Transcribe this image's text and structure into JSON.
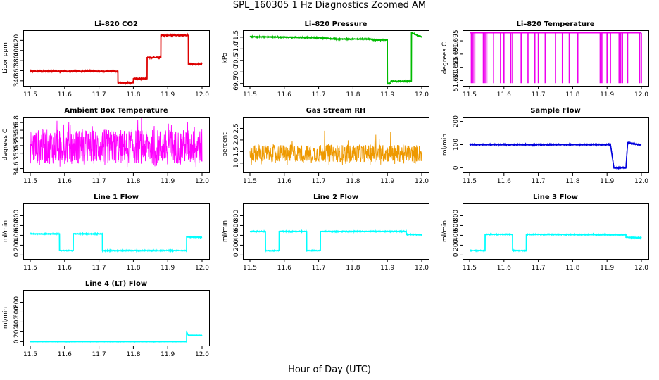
{
  "figure": {
    "title": "SPL_160305  1 Hz Diagnostics Zoomed AM",
    "xlabel": "Hour of Day (UTC)"
  },
  "chart_data": [
    {
      "type": "line",
      "title": "Li–820 CO2",
      "xlabel": "",
      "ylabel": "Licor ppm",
      "color": "#dd0000",
      "xlim": [
        11.5,
        12.0
      ],
      "ylim": [
        330,
        440
      ],
      "xticks": [
        "11.5",
        "11.6",
        "11.7",
        "11.8",
        "11.9",
        "12.0"
      ],
      "yticks": [
        {
          "v": 340,
          "label": "340"
        },
        {
          "v": 360,
          "label": "360"
        },
        {
          "v": 380,
          "label": "380"
        },
        {
          "v": 400,
          "label": "400"
        },
        {
          "v": 420,
          "label": "420"
        }
      ],
      "series": [
        {
          "x": [
            11.5,
            11.755,
            11.755,
            11.8,
            11.8,
            11.84,
            11.84,
            11.88,
            11.88,
            11.96,
            11.96,
            12.0
          ],
          "y": [
            359,
            359,
            336,
            336,
            344,
            344,
            386,
            386,
            430,
            430,
            373,
            373
          ],
          "noise": 1.5
        }
      ]
    },
    {
      "type": "line",
      "title": "Li–820 Pressure",
      "xlabel": "",
      "ylabel": "kPa",
      "color": "#00bb00",
      "xlim": [
        11.5,
        12.0
      ],
      "ylim": [
        69.4,
        71.8
      ],
      "xticks": [
        "11.5",
        "11.6",
        "11.7",
        "11.8",
        "11.9",
        "12.0"
      ],
      "yticks": [
        {
          "v": 69.5,
          "label": "69.5"
        },
        {
          "v": 70.0,
          "label": "70.0"
        },
        {
          "v": 70.5,
          "label": "70.5"
        },
        {
          "v": 71.0,
          "label": "71.0"
        },
        {
          "v": 71.5,
          "label": "71.5"
        }
      ],
      "series": [
        {
          "x": [
            11.5,
            11.7,
            11.75,
            11.85,
            11.86,
            11.9,
            11.9,
            11.91,
            11.91,
            11.95,
            11.97,
            11.97,
            12.0
          ],
          "y": [
            71.52,
            71.48,
            71.42,
            71.42,
            71.38,
            71.38,
            69.5,
            69.5,
            69.6,
            69.6,
            69.6,
            71.7,
            71.5
          ],
          "noise": 0.02
        }
      ]
    },
    {
      "type": "spikes",
      "title": "Li–820 Temperature",
      "xlabel": "",
      "ylabel": "degrees C",
      "color": "#ee00ee",
      "xlim": [
        11.5,
        12.0
      ],
      "ylim": [
        51.678,
        51.699
      ],
      "xticks": [
        "11.5",
        "11.6",
        "11.7",
        "11.8",
        "11.9",
        "12.0"
      ],
      "yticks": [
        {
          "v": 51.68,
          "label": "51.680"
        },
        {
          "v": 51.685,
          "label": "51.685"
        },
        {
          "v": 51.69,
          "label": "51.690"
        },
        {
          "v": 51.695,
          "label": "51.695"
        }
      ],
      "baseline": 51.698,
      "low": 51.679,
      "spike_x": [
        11.505,
        11.51,
        11.515,
        11.54,
        11.545,
        11.55,
        11.57,
        11.59,
        11.6,
        11.62,
        11.625,
        11.65,
        11.67,
        11.69,
        11.7,
        11.72,
        11.75,
        11.77,
        11.79,
        11.815,
        11.88,
        11.885,
        11.9,
        11.91,
        11.935,
        11.94,
        11.945,
        11.96,
        11.995,
        12.0
      ]
    },
    {
      "type": "band",
      "title": "Ambient Box Temperature",
      "xlabel": "",
      "ylabel": "degrees C",
      "color": "#ff00ff",
      "xlim": [
        11.5,
        12.0
      ],
      "ylim": [
        34.5,
        35.95
      ],
      "xticks": [
        "11.5",
        "11.6",
        "11.7",
        "11.8",
        "11.9",
        "12.0"
      ],
      "yticks": [
        {
          "v": 34.6,
          "label": "34.6"
        },
        {
          "v": 35.0,
          "label": "35.0"
        },
        {
          "v": 35.2,
          "label": "35.2"
        },
        {
          "v": 35.4,
          "label": "35.4"
        },
        {
          "v": 35.6,
          "label": "35.6"
        },
        {
          "v": 35.8,
          "label": "35.8"
        }
      ],
      "band": [
        34.72,
        35.62
      ],
      "band_center": 35.05
    },
    {
      "type": "band",
      "title": "Gas Stream RH",
      "xlabel": "",
      "ylabel": "percent",
      "color": "#ee9900",
      "xlim": [
        11.5,
        12.0
      ],
      "ylim": [
        0.6,
        3.0
      ],
      "xticks": [
        "11.5",
        "11.6",
        "11.7",
        "11.8",
        "11.9",
        "12.0"
      ],
      "yticks": [
        {
          "v": 1.0,
          "label": "1.0"
        },
        {
          "v": 1.5,
          "label": "1.5"
        },
        {
          "v": 2.0,
          "label": "2.0"
        },
        {
          "v": 2.5,
          "label": "2.5"
        }
      ],
      "band": [
        1.05,
        1.8
      ],
      "band_center": 1.35
    },
    {
      "type": "line",
      "title": "Sample Flow",
      "xlabel": "",
      "ylabel": "ml/min",
      "color": "#0000dd",
      "xlim": [
        11.5,
        12.0
      ],
      "ylim": [
        -20,
        220
      ],
      "xticks": [
        "11.5",
        "11.6",
        "11.7",
        "11.8",
        "11.9",
        "12.0"
      ],
      "yticks": [
        {
          "v": 0,
          "label": "0"
        },
        {
          "v": 100,
          "label": "100"
        },
        {
          "v": 200,
          "label": "200"
        }
      ],
      "series": [
        {
          "x": [
            11.5,
            11.91,
            11.92,
            11.955,
            11.96,
            12.0
          ],
          "y": [
            100,
            100,
            0,
            0,
            108,
            98
          ],
          "noise": 2
        }
      ]
    },
    {
      "type": "line",
      "title": "Line 1 Flow",
      "xlabel": "",
      "ylabel": "ml/min",
      "color": "#00ffff",
      "xlim": [
        11.5,
        12.0
      ],
      "ylim": [
        -80,
        1050
      ],
      "xticks": [
        "11.5",
        "11.6",
        "11.7",
        "11.8",
        "11.9",
        "12.0"
      ],
      "yticks": [
        {
          "v": 0,
          "label": "0"
        },
        {
          "v": 200,
          "label": "200"
        },
        {
          "v": 400,
          "label": "400"
        },
        {
          "v": 600,
          "label": "600"
        },
        {
          "v": 800,
          "label": "800"
        }
      ],
      "series": [
        {
          "x": [
            11.5,
            11.585,
            11.585,
            11.625,
            11.625,
            11.71,
            11.71,
            11.955,
            11.955,
            12.0
          ],
          "y": [
            430,
            430,
            90,
            90,
            430,
            430,
            90,
            90,
            370,
            360
          ],
          "noise": 8
        }
      ]
    },
    {
      "type": "line",
      "title": "Line 2 Flow",
      "xlabel": "",
      "ylabel": "ml/min",
      "color": "#00ffff",
      "xlim": [
        11.5,
        12.0
      ],
      "ylim": [
        -80,
        1050
      ],
      "xticks": [
        "11.5",
        "11.6",
        "11.7",
        "11.8",
        "11.9",
        "12.0"
      ],
      "yticks": [
        {
          "v": 0,
          "label": "0"
        },
        {
          "v": 200,
          "label": "200"
        },
        {
          "v": 400,
          "label": "400"
        },
        {
          "v": 600,
          "label": "600"
        },
        {
          "v": 800,
          "label": "800"
        }
      ],
      "series": [
        {
          "x": [
            11.5,
            11.545,
            11.545,
            11.585,
            11.585,
            11.665,
            11.665,
            11.705,
            11.705,
            11.955,
            11.955,
            12.0
          ],
          "y": [
            480,
            480,
            90,
            90,
            480,
            480,
            90,
            90,
            480,
            480,
            420,
            410
          ],
          "noise": 8
        }
      ]
    },
    {
      "type": "line",
      "title": "Line 3 Flow",
      "xlabel": "",
      "ylabel": "ml/min",
      "color": "#00ffff",
      "xlim": [
        11.5,
        12.0
      ],
      "ylim": [
        -80,
        1050
      ],
      "xticks": [
        "11.5",
        "11.6",
        "11.7",
        "11.8",
        "11.9",
        "12.0"
      ],
      "yticks": [
        {
          "v": 0,
          "label": "0"
        },
        {
          "v": 200,
          "label": "200"
        },
        {
          "v": 400,
          "label": "400"
        },
        {
          "v": 600,
          "label": "600"
        },
        {
          "v": 800,
          "label": "800"
        }
      ],
      "series": [
        {
          "x": [
            11.5,
            11.545,
            11.545,
            11.625,
            11.625,
            11.665,
            11.665,
            11.955,
            11.955,
            12.0
          ],
          "y": [
            90,
            90,
            420,
            420,
            90,
            90,
            420,
            410,
            360,
            350
          ],
          "noise": 8
        }
      ]
    },
    {
      "type": "line",
      "title": "Line 4 (LT) Flow",
      "xlabel": "",
      "ylabel": "ml/min",
      "color": "#00ffff",
      "xlim": [
        11.5,
        12.0
      ],
      "ylim": [
        -80,
        1050
      ],
      "xticks": [
        "11.5",
        "11.6",
        "11.7",
        "11.8",
        "11.9",
        "12.0"
      ],
      "yticks": [
        {
          "v": 0,
          "label": "0"
        },
        {
          "v": 200,
          "label": "200"
        },
        {
          "v": 400,
          "label": "400"
        },
        {
          "v": 600,
          "label": "600"
        },
        {
          "v": 800,
          "label": "800"
        }
      ],
      "series": [
        {
          "x": [
            11.5,
            11.955,
            11.955,
            11.96,
            12.0
          ],
          "y": [
            0,
            0,
            200,
            130,
            130
          ],
          "noise": 4
        }
      ]
    }
  ]
}
